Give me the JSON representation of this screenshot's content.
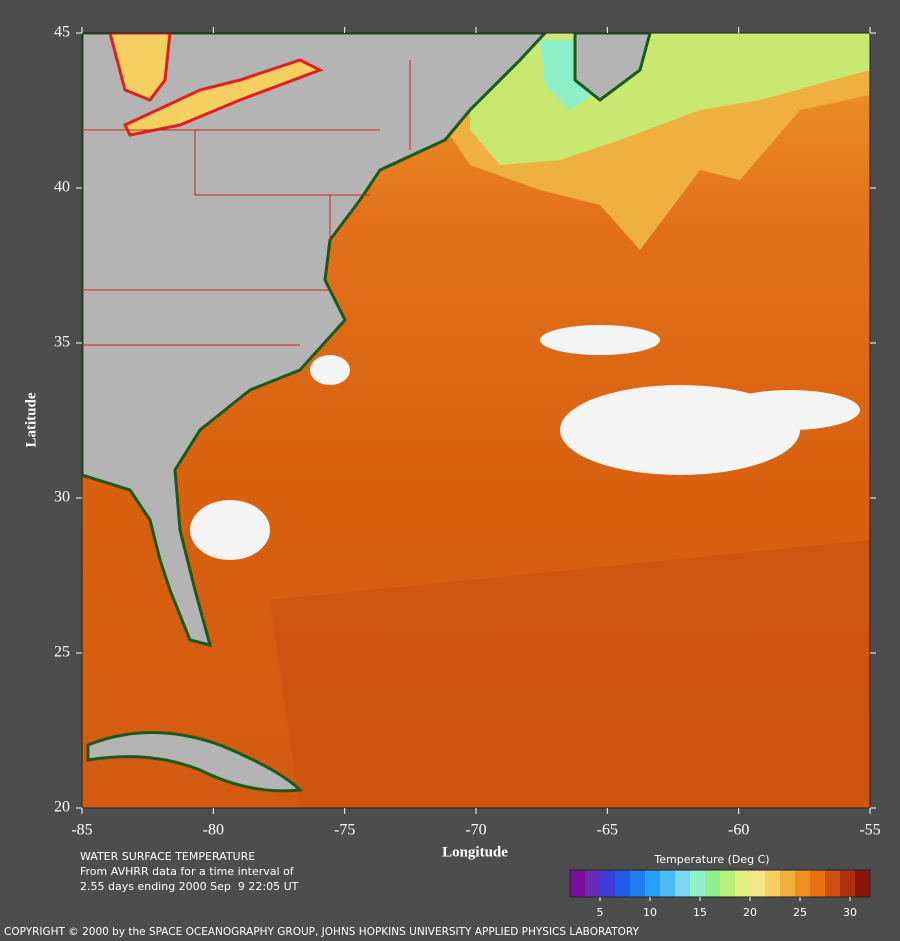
{
  "axes": {
    "xlabel": "Longitude",
    "ylabel": "Latitude",
    "xlim": [
      -85,
      -55
    ],
    "ylim": [
      20,
      45
    ],
    "xticks": [
      -85,
      -80,
      -75,
      -70,
      -65,
      -60,
      -55
    ],
    "yticks": [
      20,
      25,
      30,
      35,
      40,
      45
    ]
  },
  "caption": {
    "title": "WATER SURFACE TEMPERATURE",
    "lines": [
      "From AVHRR data for a time interval of",
      "2.55 days ending 2000 Sep  9 22:05 UT"
    ]
  },
  "colorbar": {
    "title": "Temperature (Deg C)",
    "range": [
      2,
      32
    ],
    "ticks": [
      5,
      10,
      15,
      20,
      25,
      30
    ],
    "colors": [
      "#7b0d9c",
      "#6a2bb5",
      "#3d3dd8",
      "#1f5ce8",
      "#1e7ff0",
      "#28a0f5",
      "#4bbcf5",
      "#7ad8f0",
      "#8ef0c8",
      "#90f090",
      "#b8f07a",
      "#e0f080",
      "#f5e68a",
      "#f5d060",
      "#f0b040",
      "#f09020",
      "#e87010",
      "#d05010",
      "#b03010",
      "#8c1408"
    ]
  },
  "copyright": "COPYRIGHT © 2000 by the SPACE OCEANOGRAPHY GROUP, JOHNS HOPKINS UNIVERSITY APPLIED PHYSICS LABORATORY"
}
